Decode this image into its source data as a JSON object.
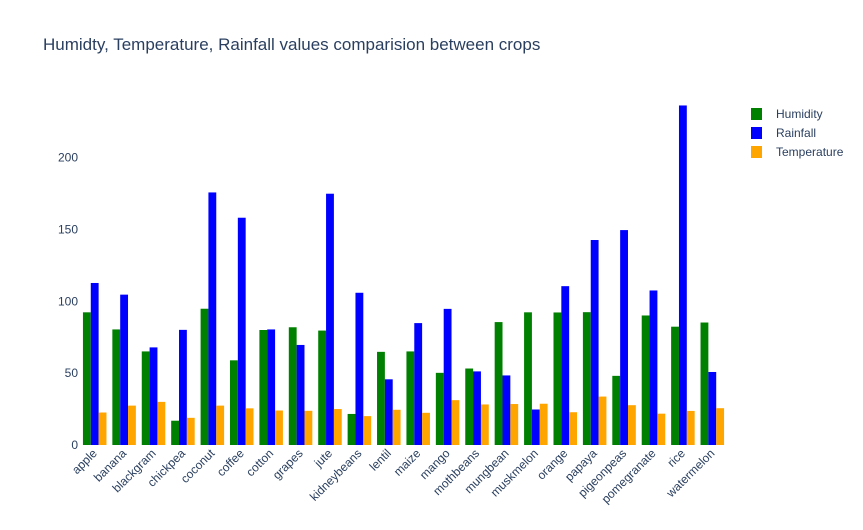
{
  "chart_data": {
    "type": "bar",
    "title": "Humidty, Temperature, Rainfall values comparision between crops",
    "xlabel": "",
    "ylabel": "",
    "ylim": [
      0,
      240
    ],
    "yticks": [
      0,
      50,
      100,
      150,
      200
    ],
    "grid": true,
    "legend_position": "top-right",
    "categories": [
      "apple",
      "banana",
      "blackgram",
      "chickpea",
      "coconut",
      "coffee",
      "cotton",
      "grapes",
      "jute",
      "kidneybeans",
      "lentil",
      "maize",
      "mango",
      "mothbeans",
      "mungbean",
      "muskmelon",
      "orange",
      "papaya",
      "pigeonpeas",
      "pomegranate",
      "rice",
      "watermelon"
    ],
    "series": [
      {
        "name": "Humidity",
        "color": "#008000",
        "values": [
          92.3,
          80.4,
          65.1,
          16.9,
          94.8,
          58.9,
          80.0,
          81.9,
          79.6,
          21.6,
          64.8,
          65.1,
          50.2,
          53.2,
          85.5,
          92.3,
          92.2,
          92.4,
          48.1,
          90.1,
          82.3,
          85.2
        ]
      },
      {
        "name": "Rainfall",
        "color": "#0000ff",
        "values": [
          112.7,
          104.6,
          67.9,
          80.1,
          175.7,
          158.1,
          80.4,
          69.6,
          174.8,
          105.9,
          45.7,
          84.8,
          94.7,
          51.2,
          48.4,
          24.7,
          110.5,
          142.6,
          149.5,
          107.5,
          236.2,
          50.8
        ]
      },
      {
        "name": "Temperature",
        "color": "#ffa500",
        "values": [
          22.6,
          27.4,
          30.0,
          18.9,
          27.4,
          25.5,
          24.0,
          23.8,
          25.0,
          20.1,
          24.5,
          22.4,
          31.2,
          28.2,
          28.5,
          28.7,
          22.8,
          33.7,
          27.7,
          21.8,
          23.7,
          25.6
        ]
      }
    ]
  }
}
